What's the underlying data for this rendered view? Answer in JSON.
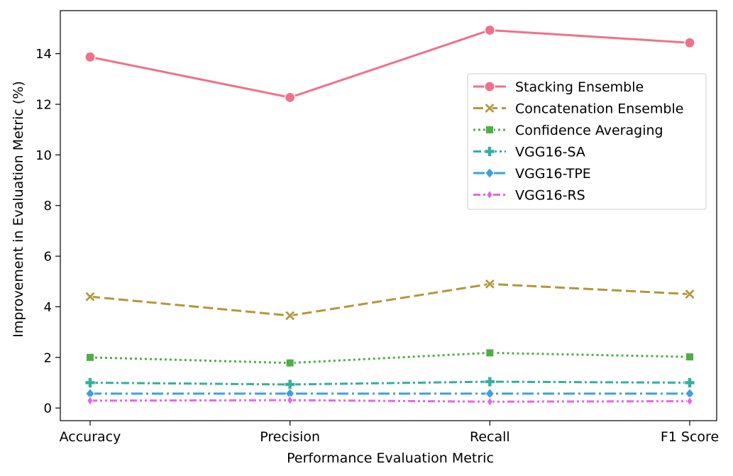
{
  "chart_data": {
    "type": "line",
    "title": "",
    "xlabel": "Performance Evaluation Metric",
    "ylabel": "Improvement in Evaluation Metric (%)",
    "categories": [
      "Accuracy",
      "Precision",
      "Recall",
      "F1 Score"
    ],
    "ylim": [
      -0.5,
      15.7
    ],
    "yticks": [
      0,
      2,
      4,
      6,
      8,
      10,
      12,
      14
    ],
    "grid": false,
    "legend_position": "upper-right",
    "series": [
      {
        "name": "Stacking Ensemble",
        "values": [
          13.87,
          12.27,
          14.93,
          14.43
        ],
        "color": "#f0708a",
        "marker": "circle",
        "dash": "solid"
      },
      {
        "name": "Concatenation Ensemble",
        "values": [
          4.4,
          3.65,
          4.9,
          4.5
        ],
        "color": "#b5963a",
        "marker": "x",
        "dash": "dashed"
      },
      {
        "name": "Confidence Averaging",
        "values": [
          2.0,
          1.78,
          2.18,
          2.02
        ],
        "color": "#4daf43",
        "marker": "square",
        "dash": "dotted"
      },
      {
        "name": "VGG16-SA",
        "values": [
          1.0,
          0.93,
          1.04,
          1.0
        ],
        "color": "#36aea0",
        "marker": "plus",
        "dash": "dashdot"
      },
      {
        "name": "VGG16-TPE",
        "values": [
          0.57,
          0.57,
          0.57,
          0.57
        ],
        "color": "#3ba1e0",
        "marker": "diamond",
        "dash": "longdashdot"
      },
      {
        "name": "VGG16-RS",
        "values": [
          0.29,
          0.31,
          0.25,
          0.27
        ],
        "color": "#e466e8",
        "marker": "thin-diamond",
        "dash": "dashdotdot"
      }
    ]
  }
}
